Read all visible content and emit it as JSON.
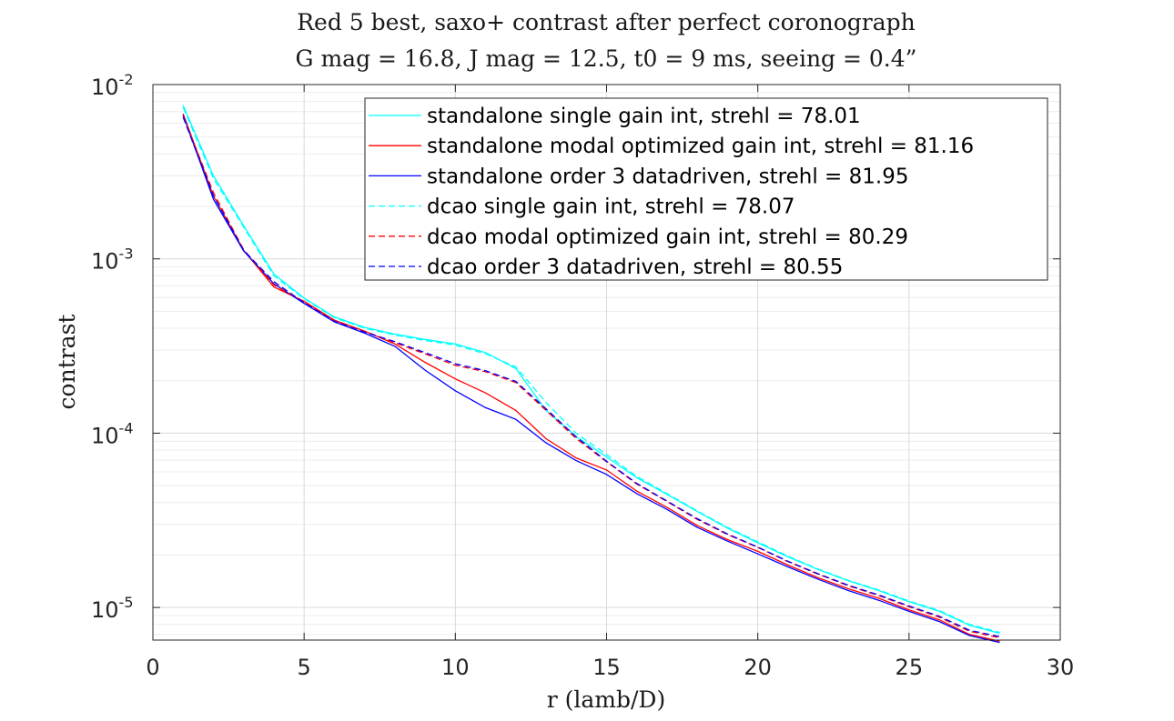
{
  "chart_data": {
    "type": "line",
    "title": "Red 5 best, saxo+ contrast after perfect coronograph",
    "subtitle": "G mag = 16.8, J mag = 12.5, t0 = 9 ms, seeing = 0.4”",
    "xlabel": "r (lamb/D)",
    "ylabel": "contrast",
    "xlim": [
      0,
      30
    ],
    "ylim": [
      6.5e-06,
      0.01
    ],
    "yscale": "log",
    "grid": true,
    "legend_position": "top-right",
    "x_ticks": [
      0,
      5,
      10,
      15,
      20,
      25,
      30
    ],
    "y_ticks": [
      {
        "base": "10",
        "exp": "-5",
        "value": 1e-05
      },
      {
        "base": "10",
        "exp": "-4",
        "value": 0.0001
      },
      {
        "base": "10",
        "exp": "-3",
        "value": 0.001
      },
      {
        "base": "10",
        "exp": "-2",
        "value": 0.01
      }
    ],
    "x": [
      1,
      2,
      3,
      4,
      5,
      6,
      7,
      8,
      9,
      10,
      11,
      12,
      13,
      14,
      15,
      16,
      17,
      18,
      19,
      20,
      21,
      22,
      23,
      24,
      25,
      26,
      27,
      28
    ],
    "series": [
      {
        "name": "standalone single gain int, strehl = 78.01",
        "color": "#00ffff",
        "dash": "solid",
        "values": [
          0.0076,
          0.003,
          0.00155,
          0.00082,
          0.000595,
          0.000465,
          0.000405,
          0.00037,
          0.000345,
          0.000325,
          0.00029,
          0.000235,
          0.000135,
          9.55e-05,
          7.3e-05,
          5.55e-05,
          4.45e-05,
          3.55e-05,
          2.85e-05,
          2.35e-05,
          1.95e-05,
          1.65e-05,
          1.42e-05,
          1.25e-05,
          1.08e-05,
          9.5e-06,
          7.9e-06,
          7.1e-06
        ]
      },
      {
        "name": "standalone modal optimized gain int, strehl = 81.16",
        "color": "#ff0000",
        "dash": "solid",
        "values": [
          0.0068,
          0.0023,
          0.00112,
          0.00069,
          0.00057,
          0.000445,
          0.000385,
          0.000325,
          0.000255,
          0.000205,
          0.00017,
          0.000135,
          9.3e-05,
          7.2e-05,
          6.15e-05,
          4.65e-05,
          3.75e-05,
          2.95e-05,
          2.45e-05,
          2.1e-05,
          1.75e-05,
          1.48e-05,
          1.28e-05,
          1.13e-05,
          9.7e-06,
          8.5e-06,
          7e-06,
          6.4e-06
        ]
      },
      {
        "name": "standalone order 3 datadriven, strehl = 81.95",
        "color": "#0000ff",
        "dash": "solid",
        "values": [
          0.0067,
          0.0022,
          0.00111,
          0.00072,
          0.000555,
          0.000435,
          0.000375,
          0.000315,
          0.00023,
          0.000175,
          0.00014,
          0.00012,
          8.8e-05,
          6.95e-05,
          5.8e-05,
          4.5e-05,
          3.65e-05,
          2.88e-05,
          2.4e-05,
          2.03e-05,
          1.71e-05,
          1.45e-05,
          1.25e-05,
          1.1e-05,
          9.5e-06,
          8.3e-06,
          6.9e-06,
          6.3e-06
        ]
      },
      {
        "name": "dcao single gain int, strehl = 78.07",
        "color": "#00ffff",
        "dash": "dashed",
        "values": [
          0.0074,
          0.0029,
          0.00152,
          0.0008,
          0.00059,
          0.00046,
          0.0004,
          0.000365,
          0.00034,
          0.00032,
          0.000285,
          0.00024,
          0.00015,
          9.95e-05,
          7.55e-05,
          5.65e-05,
          4.5e-05,
          3.58e-05,
          2.88e-05,
          2.38e-05,
          1.97e-05,
          1.66e-05,
          1.43e-05,
          1.26e-05,
          1.09e-05,
          9.6e-06,
          8e-06,
          7.2e-06
        ]
      },
      {
        "name": "dcao modal optimized gain int, strehl = 80.29",
        "color": "#ff0000",
        "dash": "dashed",
        "values": [
          0.0066,
          0.0024,
          0.00113,
          0.00071,
          0.000565,
          0.00044,
          0.000385,
          0.00033,
          0.000285,
          0.000245,
          0.000225,
          0.000195,
          0.000135,
          9.3e-05,
          6.85e-05,
          5.1e-05,
          4.05e-05,
          3.2e-05,
          2.62e-05,
          2.21e-05,
          1.83e-05,
          1.55e-05,
          1.33e-05,
          1.17e-05,
          1.01e-05,
          8.8e-06,
          7.3e-06,
          6.7e-06
        ]
      },
      {
        "name": "dcao order 3 datadriven, strehl = 80.55",
        "color": "#0000ff",
        "dash": "dashed",
        "values": [
          0.0065,
          0.0023,
          0.00112,
          0.00074,
          0.00056,
          0.000438,
          0.00038,
          0.000335,
          0.00029,
          0.00025,
          0.000228,
          0.000198,
          0.000138,
          9.5e-05,
          6.9e-05,
          5.15e-05,
          4.08e-05,
          3.23e-05,
          2.64e-05,
          2.22e-05,
          1.84e-05,
          1.56e-05,
          1.34e-05,
          1.18e-05,
          1.02e-05,
          8.9e-06,
          7.4e-06,
          6.8e-06
        ]
      }
    ]
  }
}
